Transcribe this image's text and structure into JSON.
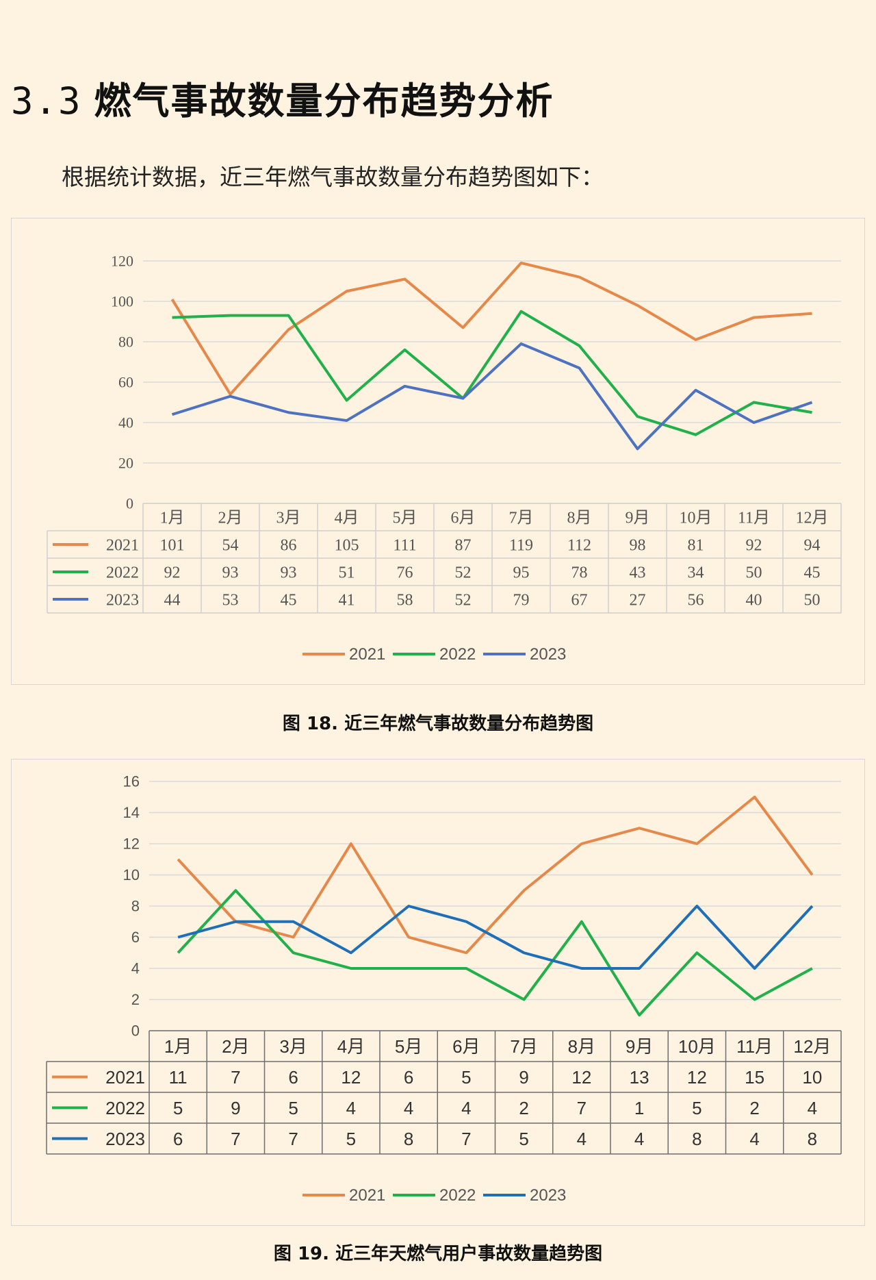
{
  "section": {
    "number": "3.3",
    "title": "燃气事故数量分布趋势分析"
  },
  "intro": "根据统计数据，近三年燃气事故数量分布趋势图如下：",
  "captions": {
    "fig18": "图 18.  近三年燃气事故数量分布趋势图",
    "fig19": "图 19.  近三年天燃气用户事故数量趋势图"
  },
  "chart_data": [
    {
      "type": "line",
      "title": "",
      "categories": [
        "1月",
        "2月",
        "3月",
        "4月",
        "5月",
        "6月",
        "7月",
        "8月",
        "9月",
        "10月",
        "11月",
        "12月"
      ],
      "ylim": [
        0,
        120
      ],
      "yticks": [
        0,
        20,
        40,
        60,
        80,
        100,
        120
      ],
      "grid": true,
      "legend": "bottom",
      "data_table": true,
      "series": [
        {
          "name": "2021",
          "color": "#e5884a",
          "values": [
            101,
            54,
            86,
            105,
            111,
            87,
            119,
            112,
            98,
            81,
            92,
            94
          ]
        },
        {
          "name": "2022",
          "color": "#22b04b",
          "values": [
            92,
            93,
            93,
            51,
            76,
            52,
            95,
            78,
            43,
            34,
            50,
            45
          ]
        },
        {
          "name": "2023",
          "color": "#4f72c0",
          "values": [
            44,
            53,
            45,
            41,
            58,
            52,
            79,
            67,
            27,
            56,
            40,
            50
          ]
        }
      ]
    },
    {
      "type": "line",
      "title": "",
      "categories": [
        "1月",
        "2月",
        "3月",
        "4月",
        "5月",
        "6月",
        "7月",
        "8月",
        "9月",
        "10月",
        "11月",
        "12月"
      ],
      "ylim": [
        0,
        16
      ],
      "yticks": [
        0,
        2,
        4,
        6,
        8,
        10,
        12,
        14,
        16
      ],
      "grid": true,
      "legend": "bottom",
      "data_table": true,
      "series": [
        {
          "name": "2021",
          "color": "#e5884a",
          "values": [
            11,
            7,
            6,
            12,
            6,
            5,
            9,
            12,
            13,
            12,
            15,
            10
          ]
        },
        {
          "name": "2022",
          "color": "#22b04b",
          "values": [
            5,
            9,
            5,
            4,
            4,
            4,
            2,
            7,
            1,
            5,
            2,
            4
          ]
        },
        {
          "name": "2023",
          "color": "#1f6fb8",
          "values": [
            6,
            7,
            7,
            5,
            8,
            7,
            5,
            4,
            4,
            8,
            4,
            8
          ]
        }
      ]
    }
  ]
}
